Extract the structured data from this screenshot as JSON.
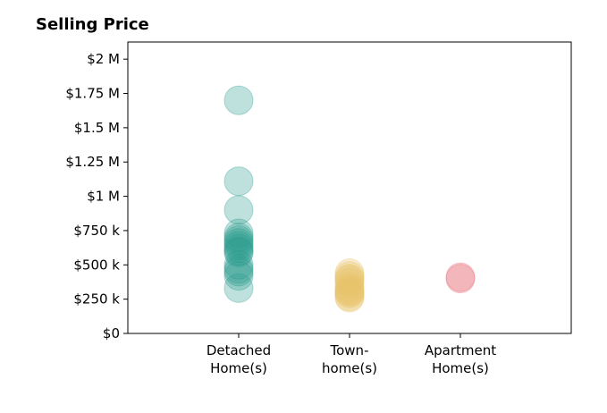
{
  "chart_data": {
    "type": "scatter",
    "title": "Selling Price",
    "categories": [
      "Detached\nHome(s)",
      "Town-\nhome(s)",
      "Apartment\nHome(s)"
    ],
    "ylim": [
      0,
      2125000
    ],
    "yticks": [
      0,
      250000,
      500000,
      750000,
      1000000,
      1250000,
      1500000,
      1750000,
      2000000
    ],
    "ytick_labels": [
      "$0",
      "$250 k",
      "$500 k",
      "$750 k",
      "$1 M",
      "$1.25 M",
      "$1.5 M",
      "$1.75 M",
      "$2 M"
    ],
    "grid": false,
    "series": [
      {
        "category": "Detached\nHome(s)",
        "color": "#2a9d8f",
        "values": [
          1700000,
          1110000,
          900000,
          730000,
          700000,
          680000,
          660000,
          640000,
          620000,
          600000,
          590000,
          500000,
          470000,
          450000,
          420000,
          330000
        ]
      },
      {
        "category": "Town-\nhome(s)",
        "color": "#e9c46a",
        "values": [
          440000,
          420000,
          400000,
          390000,
          370000,
          340000,
          320000,
          310000,
          300000,
          290000,
          270000,
          260000
        ]
      },
      {
        "category": "Apartment\nHome(s)",
        "color": "#e76f7a",
        "values": [
          410000,
          400000
        ]
      }
    ]
  }
}
